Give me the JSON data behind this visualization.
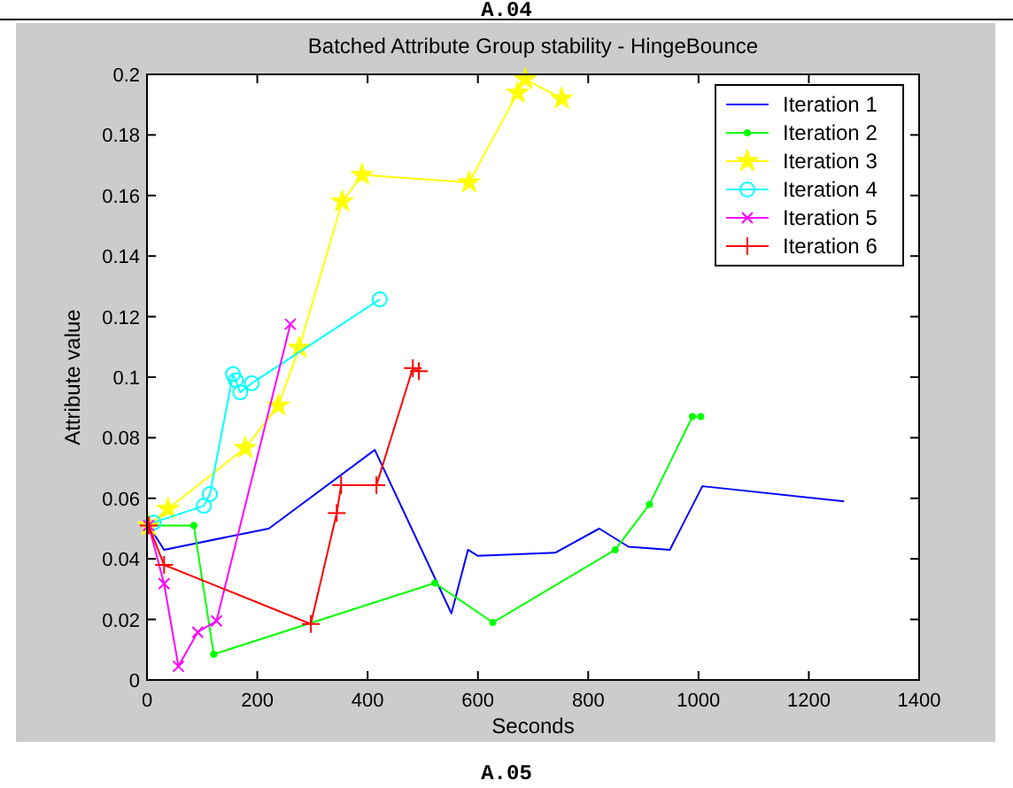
{
  "chart_data": {
    "type": "line",
    "title": "Batched Attribute Group stability - HingeBounce",
    "xlabel": "Seconds",
    "ylabel": "Attribute value",
    "annotations": [
      "A.04",
      "A.05"
    ],
    "xlim": [
      0,
      1400
    ],
    "xticks": [
      0,
      200,
      400,
      600,
      800,
      1000,
      1200,
      1400
    ],
    "ylim": [
      0,
      0.2
    ],
    "yticks": [
      0,
      0.02,
      0.04,
      0.06,
      0.08,
      0.1,
      0.12,
      0.14,
      0.16,
      0.18,
      0.2
    ],
    "grid": false,
    "legend": "top right",
    "series": [
      {
        "name": "Iteration 1",
        "color": "#0000ff",
        "marker": "none",
        "x": [
          3,
          31,
          221,
          413,
          552,
          582,
          600,
          740,
          820,
          873,
          948,
          1007,
          1264
        ],
        "values": [
          0.051,
          0.043,
          0.05,
          0.076,
          0.022,
          0.043,
          0.041,
          0.042,
          0.05,
          0.044,
          0.043,
          0.064,
          0.059
        ]
      },
      {
        "name": "Iteration 2",
        "color": "#00ff00",
        "marker": "point",
        "x": [
          3,
          85,
          121,
          522,
          627,
          849,
          911,
          989,
          1004
        ],
        "values": [
          0.051,
          0.051,
          0.0085,
          0.032,
          0.019,
          0.043,
          0.058,
          0.087,
          0.087
        ]
      },
      {
        "name": "Iteration 3",
        "color": "#ffff00",
        "marker": "star",
        "x": [
          3,
          38,
          178,
          238,
          276,
          354,
          390,
          584,
          672,
          686,
          752
        ],
        "values": [
          0.051,
          0.0565,
          0.0766,
          0.0906,
          0.1097,
          0.158,
          0.1668,
          0.1643,
          0.1939,
          0.1984,
          0.192
        ]
      },
      {
        "name": "Iteration 4",
        "color": "#00ffff",
        "marker": "circle",
        "x": [
          12,
          103,
          114,
          156,
          161,
          169,
          190,
          422
        ],
        "values": [
          0.052,
          0.0575,
          0.0614,
          0.101,
          0.099,
          0.095,
          0.098,
          0.1257
        ]
      },
      {
        "name": "Iteration 5",
        "color": "#ff00ff",
        "marker": "cross",
        "x": [
          3,
          31,
          57,
          92,
          126,
          260
        ],
        "values": [
          0.051,
          0.0318,
          0.0045,
          0.0158,
          0.0195,
          0.1175
        ]
      },
      {
        "name": "Iteration 6",
        "color": "#ff0000",
        "marker": "plus",
        "x": [
          3,
          31,
          297,
          344,
          352,
          416,
          482,
          493
        ],
        "values": [
          0.051,
          0.038,
          0.0185,
          0.0551,
          0.0643,
          0.0643,
          0.103,
          0.102
        ]
      }
    ]
  }
}
